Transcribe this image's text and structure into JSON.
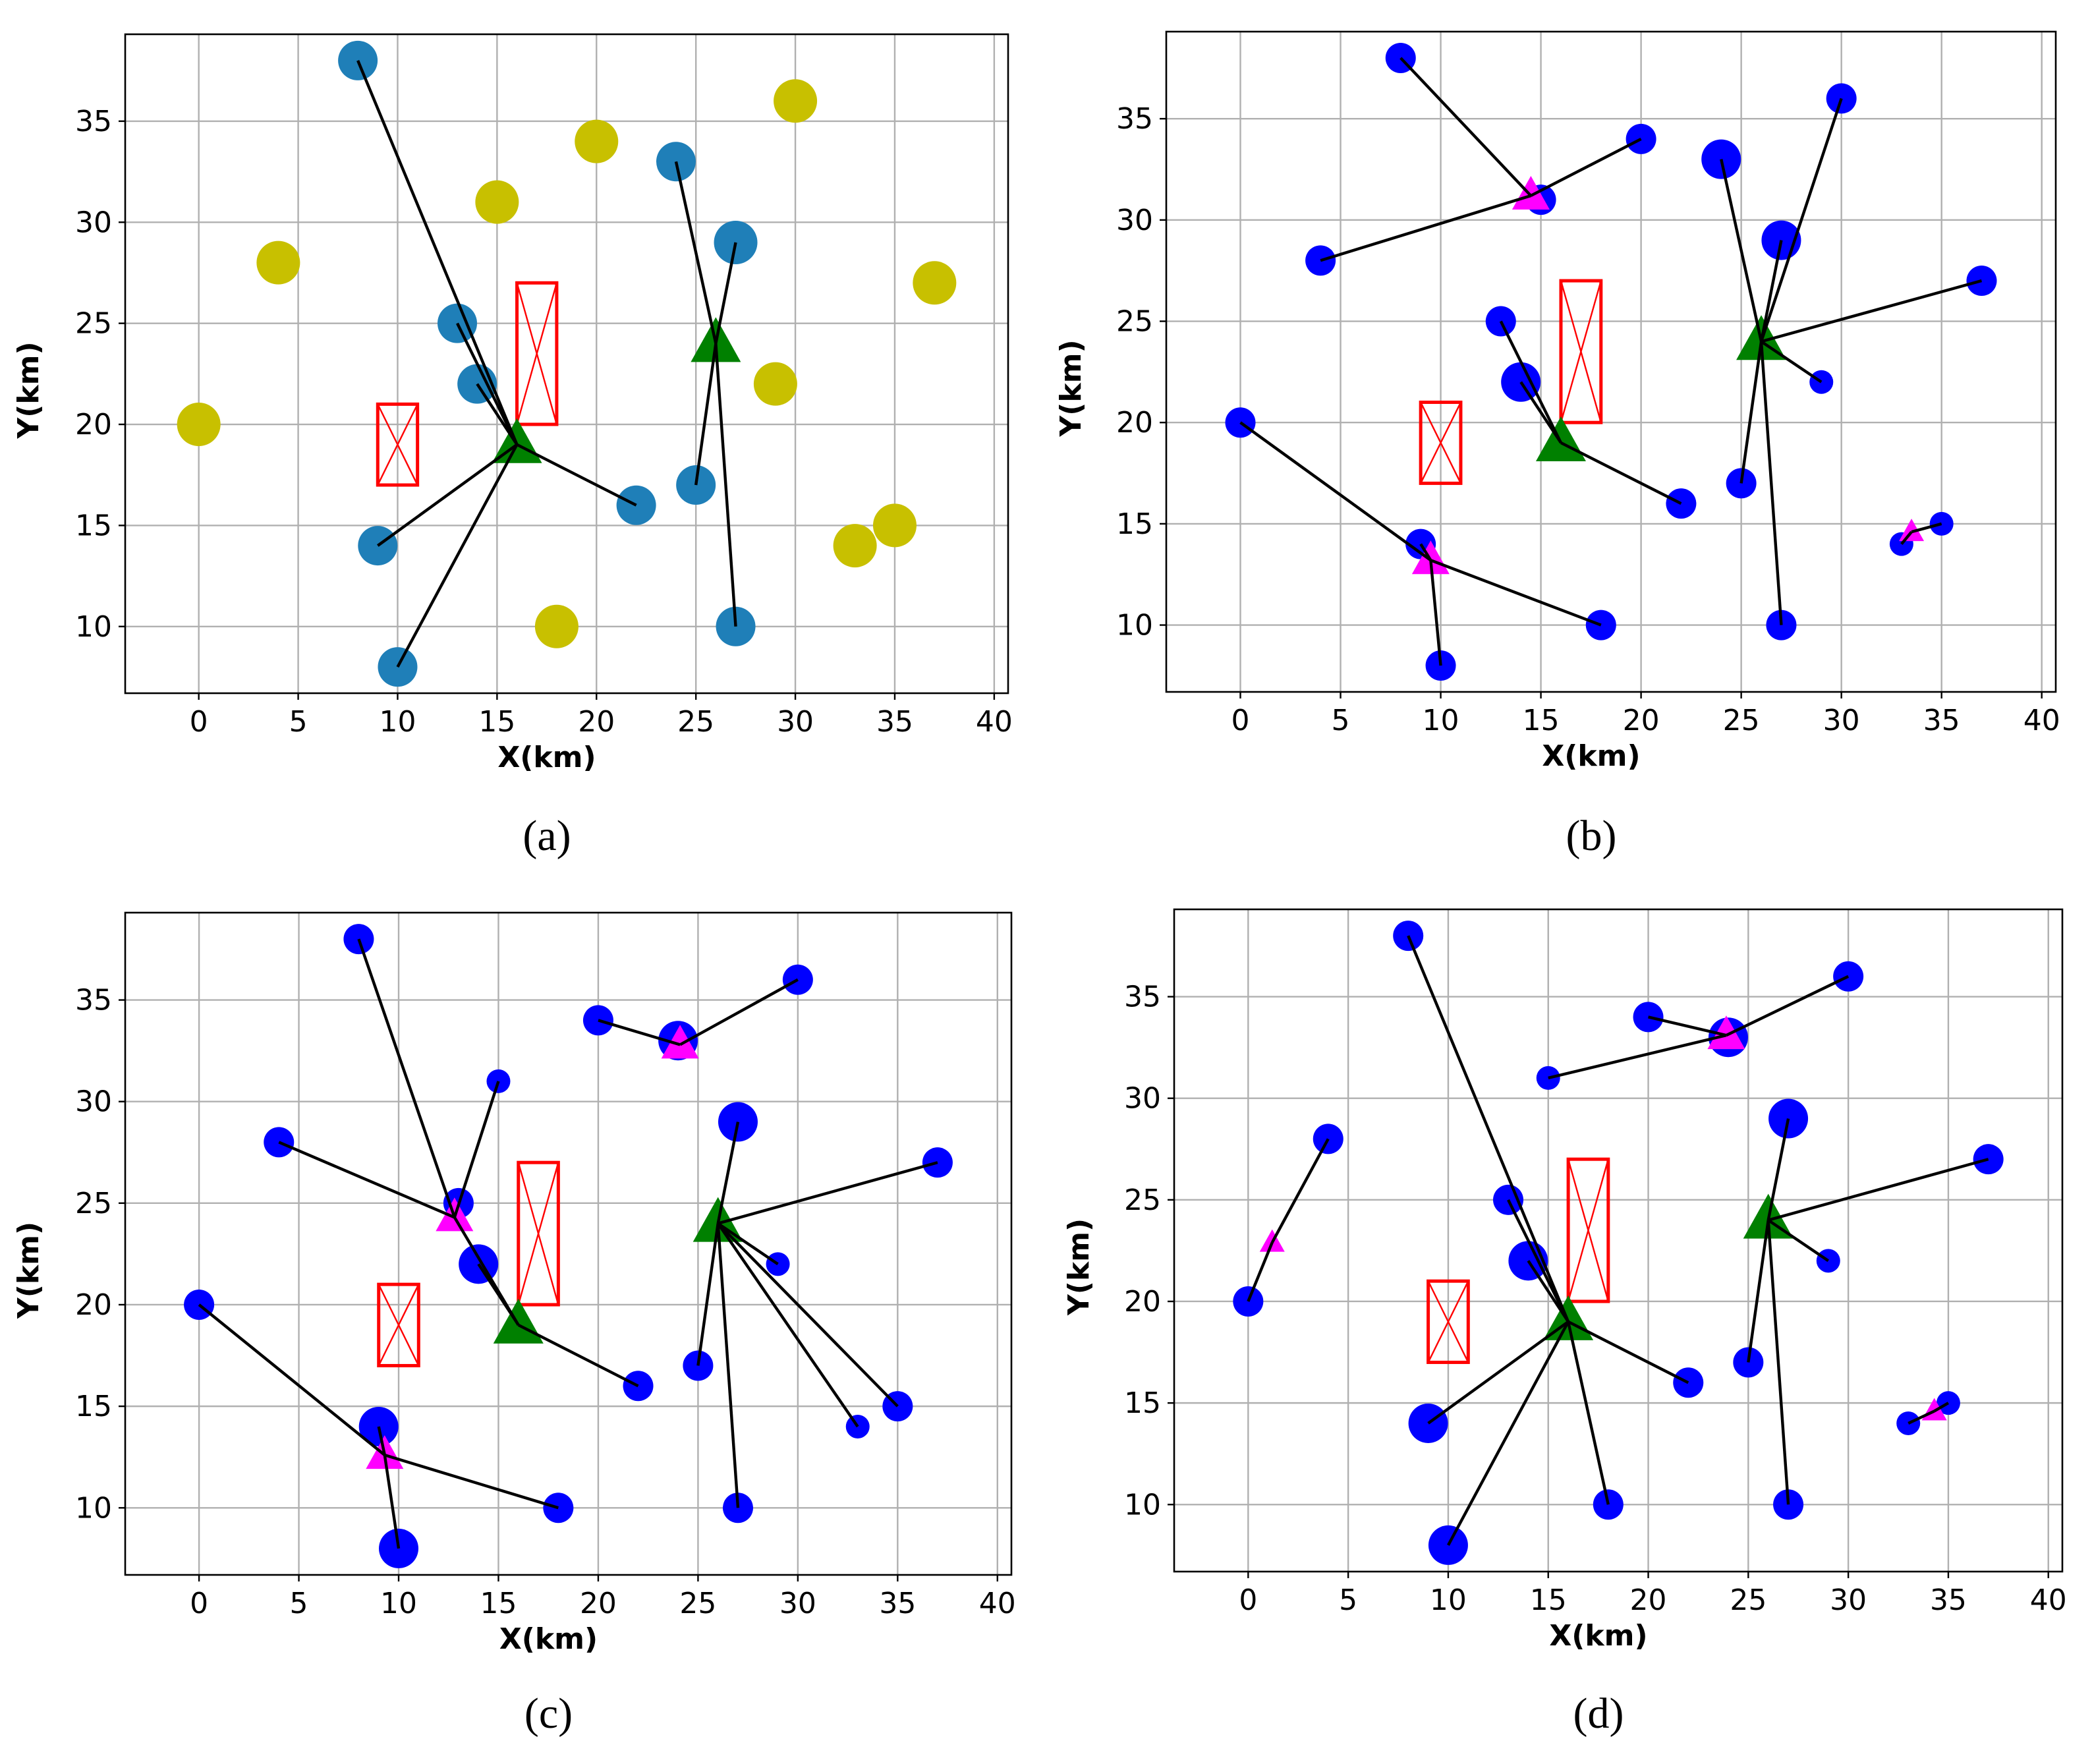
{
  "colors": {
    "candidate": "#c8c000",
    "selected_ring": "#1f7fb8",
    "node": "#0000ff",
    "hub": "#008000",
    "relay": "#ff00ff",
    "restricted": "#ff0000",
    "link": "#000000",
    "grid": "#b0b0b0"
  },
  "chart_data": [
    {
      "id": "a",
      "panel_label": "(a)",
      "type": "scatter",
      "xlabel": "X(km)",
      "ylabel": "Y(km)",
      "xlim": [
        -3.7,
        40.7
      ],
      "ylim": [
        6.7,
        39.3
      ],
      "xticks": [
        0,
        5,
        10,
        15,
        20,
        25,
        30,
        35,
        40
      ],
      "yticks": [
        10,
        15,
        20,
        25,
        30,
        35
      ],
      "grid": true,
      "candidates": [
        {
          "x": 0,
          "y": 20
        },
        {
          "x": 4,
          "y": 28
        },
        {
          "x": 15,
          "y": 31
        },
        {
          "x": 20,
          "y": 34
        },
        {
          "x": 30,
          "y": 36
        },
        {
          "x": 37,
          "y": 27
        },
        {
          "x": 29,
          "y": 22
        },
        {
          "x": 35,
          "y": 15
        },
        {
          "x": 33,
          "y": 14
        },
        {
          "x": 18,
          "y": 10
        }
      ],
      "nodes": [
        {
          "x": 8,
          "y": 38,
          "size": "m"
        },
        {
          "x": 13,
          "y": 25,
          "size": "m"
        },
        {
          "x": 14,
          "y": 22,
          "size": "m"
        },
        {
          "x": 22,
          "y": 16,
          "size": "m"
        },
        {
          "x": 9,
          "y": 14,
          "size": "m"
        },
        {
          "x": 10,
          "y": 8,
          "size": "m"
        },
        {
          "x": 24,
          "y": 33,
          "size": "m"
        },
        {
          "x": 27,
          "y": 29,
          "size": "l"
        },
        {
          "x": 25,
          "y": 17,
          "size": "m"
        },
        {
          "x": 27,
          "y": 10,
          "size": "m"
        }
      ],
      "hubs": [
        {
          "x": 16,
          "y": 19
        },
        {
          "x": 26,
          "y": 24
        }
      ],
      "relays": [],
      "links": [
        [
          8,
          38,
          16,
          19
        ],
        [
          13,
          25,
          16,
          19
        ],
        [
          14,
          22,
          16,
          19
        ],
        [
          22,
          16,
          16,
          19
        ],
        [
          9,
          14,
          16,
          19
        ],
        [
          10,
          8,
          16,
          19
        ],
        [
          24,
          33,
          26,
          24
        ],
        [
          27,
          29,
          26,
          24
        ],
        [
          25,
          17,
          26,
          24
        ],
        [
          27,
          10,
          26,
          24
        ]
      ],
      "restricted_zones": [
        {
          "x0": 9,
          "x1": 11,
          "y0": 17,
          "y1": 21
        },
        {
          "x0": 16,
          "x1": 18,
          "y0": 20,
          "y1": 27
        }
      ]
    },
    {
      "id": "b",
      "panel_label": "(b)",
      "type": "scatter",
      "xlabel": "X(km)",
      "ylabel": "Y(km)",
      "xlim": [
        -3.7,
        40.7
      ],
      "ylim": [
        6.7,
        39.3
      ],
      "xticks": [
        0,
        5,
        10,
        15,
        20,
        25,
        30,
        35,
        40
      ],
      "yticks": [
        10,
        15,
        20,
        25,
        30,
        35
      ],
      "grid": true,
      "candidates": [],
      "nodes": [
        {
          "x": 8,
          "y": 38,
          "size": "s"
        },
        {
          "x": 15,
          "y": 31,
          "size": "s"
        },
        {
          "x": 20,
          "y": 34,
          "size": "s"
        },
        {
          "x": 4,
          "y": 28,
          "size": "s"
        },
        {
          "x": 24,
          "y": 33,
          "size": "m"
        },
        {
          "x": 30,
          "y": 36,
          "size": "s"
        },
        {
          "x": 27,
          "y": 29,
          "size": "m"
        },
        {
          "x": 37,
          "y": 27,
          "size": "s"
        },
        {
          "x": 29,
          "y": 22,
          "size": "xs"
        },
        {
          "x": 13,
          "y": 25,
          "size": "s"
        },
        {
          "x": 14,
          "y": 22,
          "size": "m"
        },
        {
          "x": 22,
          "y": 16,
          "size": "s"
        },
        {
          "x": 25,
          "y": 17,
          "size": "s"
        },
        {
          "x": 0,
          "y": 20,
          "size": "s"
        },
        {
          "x": 9,
          "y": 14,
          "size": "s"
        },
        {
          "x": 18,
          "y": 10,
          "size": "s"
        },
        {
          "x": 10,
          "y": 8,
          "size": "s"
        },
        {
          "x": 27,
          "y": 10,
          "size": "s"
        },
        {
          "x": 33,
          "y": 14,
          "size": "xs"
        },
        {
          "x": 35,
          "y": 15,
          "size": "xs"
        }
      ],
      "hubs": [
        {
          "x": 16,
          "y": 19
        },
        {
          "x": 26,
          "y": 24
        }
      ],
      "relays": [
        {
          "x": 14.5,
          "y": 31.2,
          "size": "m"
        },
        {
          "x": 9.5,
          "y": 13.2,
          "size": "m"
        },
        {
          "x": 33.5,
          "y": 14.6,
          "size": "s"
        }
      ],
      "links": [
        [
          8,
          38,
          14.5,
          31.2
        ],
        [
          20,
          34,
          14.5,
          31.2
        ],
        [
          4,
          28,
          14.5,
          31.2
        ],
        [
          24,
          33,
          26,
          24
        ],
        [
          30,
          36,
          26,
          24
        ],
        [
          27,
          29,
          26,
          24
        ],
        [
          37,
          27,
          26,
          24
        ],
        [
          29,
          22,
          26,
          24
        ],
        [
          25,
          17,
          26,
          24
        ],
        [
          27,
          10,
          26,
          24
        ],
        [
          13,
          25,
          16,
          19
        ],
        [
          14,
          22,
          16,
          19
        ],
        [
          22,
          16,
          16,
          19
        ],
        [
          0,
          20,
          9.5,
          13.2
        ],
        [
          18,
          10,
          9.5,
          13.2
        ],
        [
          10,
          8,
          9.5,
          13.2
        ],
        [
          9,
          14,
          9.5,
          13.2
        ],
        [
          33,
          14,
          33.5,
          14.6
        ],
        [
          35,
          15,
          33.5,
          14.6
        ]
      ],
      "restricted_zones": [
        {
          "x0": 9,
          "x1": 11,
          "y0": 17,
          "y1": 21
        },
        {
          "x0": 16,
          "x1": 18,
          "y0": 20,
          "y1": 27
        }
      ]
    },
    {
      "id": "c",
      "panel_label": "(c)",
      "type": "scatter",
      "xlabel": "X(km)",
      "ylabel": "Y(km)",
      "xlim": [
        -3.7,
        40.7
      ],
      "ylim": [
        6.7,
        39.3
      ],
      "xticks": [
        0,
        5,
        10,
        15,
        20,
        25,
        30,
        35,
        40
      ],
      "yticks": [
        10,
        15,
        20,
        25,
        30,
        35
      ],
      "grid": true,
      "candidates": [],
      "nodes": [
        {
          "x": 8,
          "y": 38,
          "size": "s"
        },
        {
          "x": 15,
          "y": 31,
          "size": "xs"
        },
        {
          "x": 4,
          "y": 28,
          "size": "s"
        },
        {
          "x": 13,
          "y": 25,
          "size": "s"
        },
        {
          "x": 14,
          "y": 22,
          "size": "m"
        },
        {
          "x": 20,
          "y": 34,
          "size": "s"
        },
        {
          "x": 24,
          "y": 33,
          "size": "m"
        },
        {
          "x": 30,
          "y": 36,
          "size": "s"
        },
        {
          "x": 27,
          "y": 29,
          "size": "m"
        },
        {
          "x": 37,
          "y": 27,
          "size": "s"
        },
        {
          "x": 29,
          "y": 22,
          "size": "xs"
        },
        {
          "x": 22,
          "y": 16,
          "size": "s"
        },
        {
          "x": 25,
          "y": 17,
          "size": "s"
        },
        {
          "x": 35,
          "y": 15,
          "size": "s"
        },
        {
          "x": 33,
          "y": 14,
          "size": "xs"
        },
        {
          "x": 27,
          "y": 10,
          "size": "s"
        },
        {
          "x": 0,
          "y": 20,
          "size": "s"
        },
        {
          "x": 9,
          "y": 14,
          "size": "m"
        },
        {
          "x": 18,
          "y": 10,
          "size": "s"
        },
        {
          "x": 10,
          "y": 8,
          "size": "m"
        }
      ],
      "hubs": [
        {
          "x": 16,
          "y": 19
        },
        {
          "x": 26,
          "y": 24
        }
      ],
      "relays": [
        {
          "x": 12.8,
          "y": 24.3,
          "size": "m"
        },
        {
          "x": 24.1,
          "y": 32.8,
          "size": "m"
        },
        {
          "x": 9.3,
          "y": 12.6,
          "size": "m"
        }
      ],
      "links": [
        [
          8,
          38,
          12.8,
          24.3
        ],
        [
          15,
          31,
          12.8,
          24.3
        ],
        [
          4,
          28,
          12.8,
          24.3
        ],
        [
          12.8,
          24.3,
          16,
          19
        ],
        [
          14,
          22,
          16,
          19
        ],
        [
          22,
          16,
          16,
          19
        ],
        [
          20,
          34,
          24.1,
          32.8
        ],
        [
          30,
          36,
          24.1,
          32.8
        ],
        [
          27,
          29,
          26,
          24
        ],
        [
          37,
          27,
          26,
          24
        ],
        [
          29,
          22,
          26,
          24
        ],
        [
          35,
          15,
          26,
          24
        ],
        [
          33,
          14,
          26,
          24
        ],
        [
          25,
          17,
          26,
          24
        ],
        [
          27,
          10,
          26,
          24
        ],
        [
          0,
          20,
          9.3,
          12.6
        ],
        [
          18,
          10,
          9.3,
          12.6
        ],
        [
          10,
          8,
          9.3,
          12.6
        ],
        [
          9,
          14,
          9.3,
          12.6
        ]
      ],
      "restricted_zones": [
        {
          "x0": 9,
          "x1": 11,
          "y0": 17,
          "y1": 21
        },
        {
          "x0": 16,
          "x1": 18,
          "y0": 20,
          "y1": 27
        }
      ]
    },
    {
      "id": "d",
      "panel_label": "(d)",
      "type": "scatter",
      "xlabel": "X(km)",
      "ylabel": "Y(km)",
      "xlim": [
        -3.7,
        40.7
      ],
      "ylim": [
        6.7,
        39.3
      ],
      "xticks": [
        0,
        5,
        10,
        15,
        20,
        25,
        30,
        35,
        40
      ],
      "yticks": [
        10,
        15,
        20,
        25,
        30,
        35
      ],
      "grid": true,
      "candidates": [],
      "nodes": [
        {
          "x": 8,
          "y": 38,
          "size": "s"
        },
        {
          "x": 13,
          "y": 25,
          "size": "s"
        },
        {
          "x": 14,
          "y": 22,
          "size": "m"
        },
        {
          "x": 22,
          "y": 16,
          "size": "s"
        },
        {
          "x": 9,
          "y": 14,
          "size": "m"
        },
        {
          "x": 10,
          "y": 8,
          "size": "m"
        },
        {
          "x": 18,
          "y": 10,
          "size": "s"
        },
        {
          "x": 20,
          "y": 34,
          "size": "s"
        },
        {
          "x": 24,
          "y": 33,
          "size": "m"
        },
        {
          "x": 30,
          "y": 36,
          "size": "s"
        },
        {
          "x": 15,
          "y": 31,
          "size": "xs"
        },
        {
          "x": 27,
          "y": 29,
          "size": "m"
        },
        {
          "x": 37,
          "y": 27,
          "size": "s"
        },
        {
          "x": 29,
          "y": 22,
          "size": "xs"
        },
        {
          "x": 25,
          "y": 17,
          "size": "s"
        },
        {
          "x": 27,
          "y": 10,
          "size": "s"
        },
        {
          "x": 4,
          "y": 28,
          "size": "s"
        },
        {
          "x": 0,
          "y": 20,
          "size": "s"
        },
        {
          "x": 33,
          "y": 14,
          "size": "xs"
        },
        {
          "x": 35,
          "y": 15,
          "size": "xs"
        }
      ],
      "hubs": [
        {
          "x": 16,
          "y": 19
        },
        {
          "x": 26,
          "y": 24
        }
      ],
      "relays": [
        {
          "x": 1.2,
          "y": 22.9,
          "size": "s"
        },
        {
          "x": 23.9,
          "y": 33.1,
          "size": "m"
        },
        {
          "x": 34.3,
          "y": 14.6,
          "size": "s"
        }
      ],
      "links": [
        [
          8,
          38,
          16,
          19
        ],
        [
          13,
          25,
          16,
          19
        ],
        [
          14,
          22,
          16,
          19
        ],
        [
          22,
          16,
          16,
          19
        ],
        [
          9,
          14,
          16,
          19
        ],
        [
          10,
          8,
          16,
          19
        ],
        [
          18,
          10,
          16,
          19
        ],
        [
          20,
          34,
          23.9,
          33.1
        ],
        [
          30,
          36,
          23.9,
          33.1
        ],
        [
          15,
          31,
          23.9,
          33.1
        ],
        [
          27,
          29,
          26,
          24
        ],
        [
          37,
          27,
          26,
          24
        ],
        [
          29,
          22,
          26,
          24
        ],
        [
          25,
          17,
          26,
          24
        ],
        [
          27,
          10,
          26,
          24
        ],
        [
          4,
          28,
          1.2,
          22.9
        ],
        [
          0,
          20,
          1.2,
          22.9
        ],
        [
          33,
          14,
          34.3,
          14.6
        ],
        [
          35,
          15,
          34.3,
          14.6
        ]
      ],
      "restricted_zones": [
        {
          "x0": 9,
          "x1": 11,
          "y0": 17,
          "y1": 21
        },
        {
          "x0": 16,
          "x1": 18,
          "y0": 20,
          "y1": 27
        }
      ]
    }
  ]
}
